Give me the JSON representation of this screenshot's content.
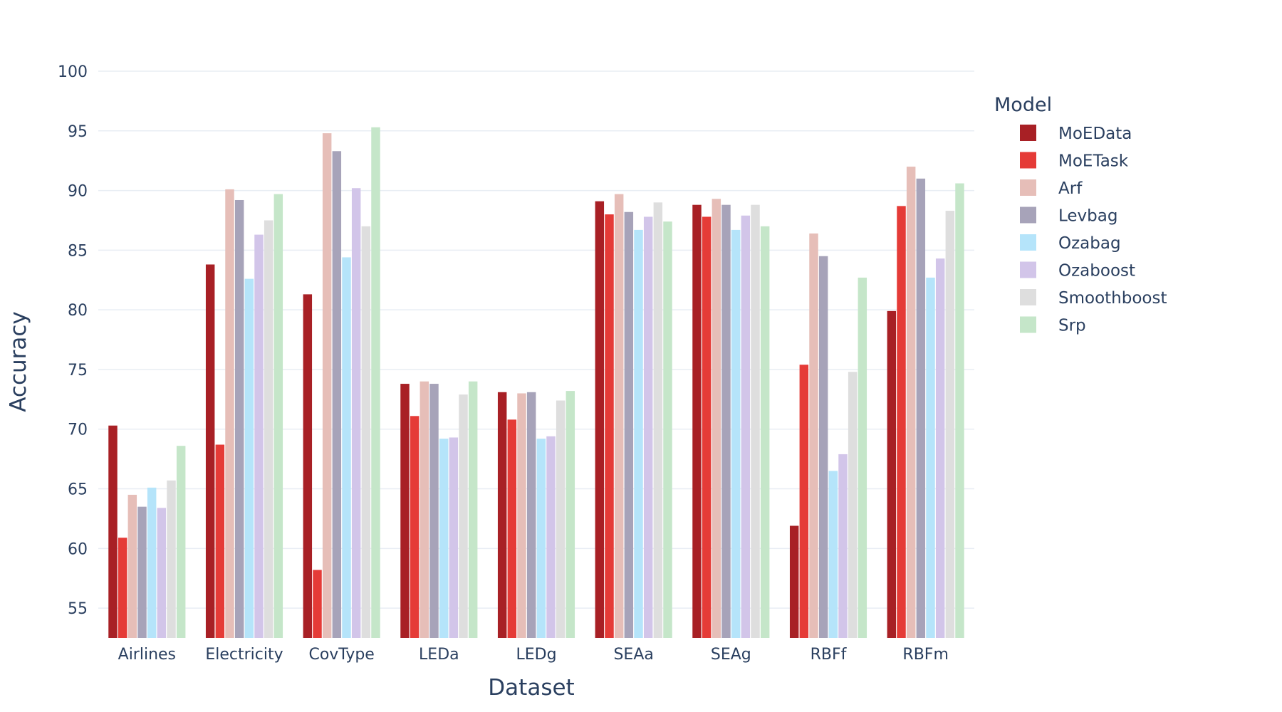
{
  "chart_data": {
    "type": "bar",
    "xlabel": "Dataset",
    "ylabel": "Accuracy",
    "ylim": [
      52.5,
      100
    ],
    "yticks": [
      55,
      60,
      65,
      70,
      75,
      80,
      85,
      90,
      95,
      100
    ],
    "grid": true,
    "legend_placement": "right",
    "legend_title": "Model",
    "categories": [
      "Airlines",
      "Electricity",
      "CovType",
      "LEDa",
      "LEDg",
      "SEAa",
      "SEAg",
      "RBFf",
      "RBFm"
    ],
    "series": [
      {
        "name": "MoEData",
        "color": "#a82025",
        "values": [
          70.3,
          83.8,
          81.3,
          73.8,
          73.1,
          89.1,
          88.8,
          61.9,
          79.9
        ]
      },
      {
        "name": "MoETask",
        "color": "#e53b37",
        "values": [
          60.9,
          68.7,
          58.2,
          71.1,
          70.8,
          88.0,
          87.8,
          75.4,
          88.7
        ]
      },
      {
        "name": "Arf",
        "color": "#e6beb8",
        "values": [
          64.5,
          90.1,
          94.8,
          74.0,
          73.0,
          89.7,
          89.3,
          86.4,
          92.0
        ]
      },
      {
        "name": "Levbag",
        "color": "#a7a3b9",
        "values": [
          63.5,
          89.2,
          93.3,
          73.8,
          73.1,
          88.2,
          88.8,
          84.5,
          91.0
        ]
      },
      {
        "name": "Ozabag",
        "color": "#b5e4fa",
        "values": [
          65.1,
          82.6,
          84.4,
          69.2,
          69.2,
          86.7,
          86.7,
          66.5,
          82.7
        ]
      },
      {
        "name": "Ozaboost",
        "color": "#d2c5e9",
        "values": [
          63.4,
          86.3,
          90.2,
          69.3,
          69.4,
          87.8,
          87.9,
          67.9,
          84.3
        ]
      },
      {
        "name": "Smoothboost",
        "color": "#dedede",
        "values": [
          65.7,
          87.5,
          87.0,
          72.9,
          72.4,
          89.0,
          88.8,
          74.8,
          88.3
        ]
      },
      {
        "name": "Srp",
        "color": "#c5e6c9",
        "values": [
          68.6,
          89.7,
          95.3,
          74.0,
          73.2,
          87.4,
          87.0,
          82.7,
          90.6
        ]
      }
    ]
  }
}
